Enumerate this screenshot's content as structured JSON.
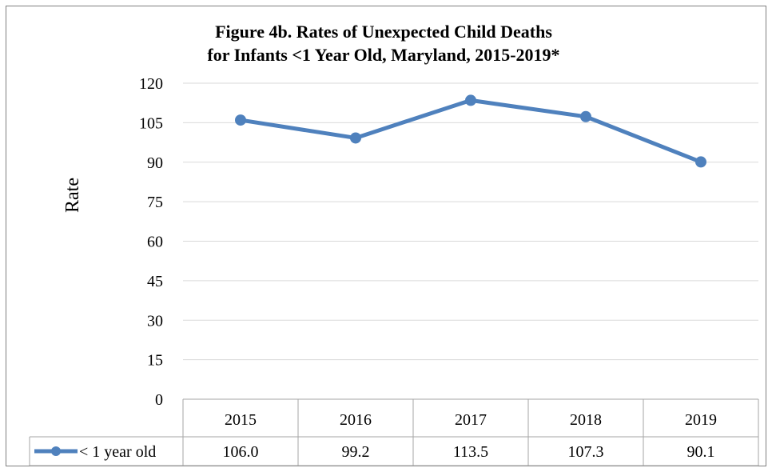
{
  "chart_data": {
    "type": "line",
    "title": "Figure 4b. Rates of Unexpected Child Deaths",
    "subtitle": "for Infants <1 Year Old, Maryland, 2015-2019*",
    "ylabel": "Rate",
    "xlabel": "",
    "categories": [
      "2015",
      "2016",
      "2017",
      "2018",
      "2019"
    ],
    "ylim": [
      0,
      120
    ],
    "yticks": [
      0,
      15,
      30,
      45,
      60,
      75,
      90,
      105,
      120
    ],
    "grid": true,
    "legend": "data-table",
    "series": [
      {
        "name": "< 1 year old",
        "color": "#4f81bd",
        "values": [
          106.0,
          99.2,
          113.5,
          107.3,
          90.1
        ],
        "value_labels": [
          "106.0",
          "99.2",
          "113.5",
          "107.3",
          "90.1"
        ]
      }
    ]
  }
}
